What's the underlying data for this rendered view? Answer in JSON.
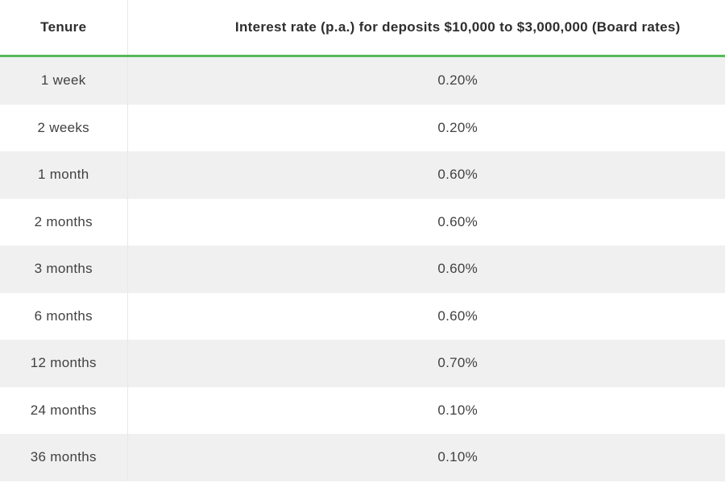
{
  "table": {
    "columns": [
      {
        "label": "Tenure"
      },
      {
        "label": "Interest rate (p.a.) for deposits $10,000 to $3,000,000 (Board rates)"
      }
    ],
    "rows": [
      {
        "tenure": "1 week",
        "rate": "0.20%"
      },
      {
        "tenure": "2 weeks",
        "rate": "0.20%"
      },
      {
        "tenure": "1 month",
        "rate": "0.60%"
      },
      {
        "tenure": "2 months",
        "rate": "0.60%"
      },
      {
        "tenure": "3 months",
        "rate": "0.60%"
      },
      {
        "tenure": "6 months",
        "rate": "0.60%"
      },
      {
        "tenure": "12 months",
        "rate": "0.70%"
      },
      {
        "tenure": "24 months",
        "rate": "0.10%"
      },
      {
        "tenure": "36 months",
        "rate": "0.10%"
      }
    ],
    "colors": {
      "header_underline": "#57b957",
      "row_alt_bg": "#f0f0f0",
      "divider": "#e8e8e8",
      "header_text": "#2e2e2e",
      "body_text": "#414141"
    }
  }
}
